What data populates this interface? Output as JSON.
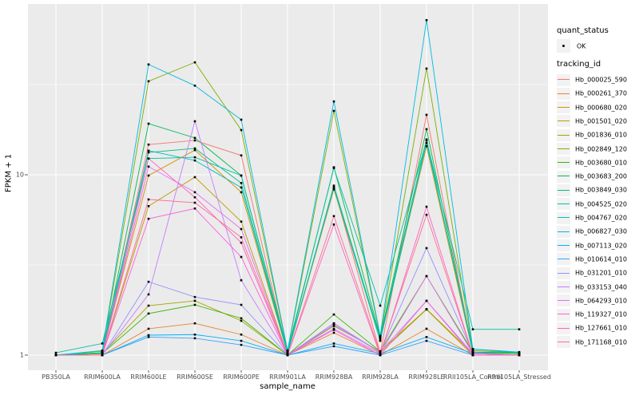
{
  "figure": {
    "panel_bg": "#EBEBEB",
    "grid_color": "#FFFFFF",
    "tick_color": "#333333",
    "tick_label_color": "#4D4D4D",
    "point_color": "#000000"
  },
  "axes": {
    "x_title": "sample_name",
    "y_title": "FPKM + 1",
    "y_ticks": [
      {
        "label": "1",
        "value": 1
      },
      {
        "label": "10",
        "value": 10
      }
    ],
    "y_minor_breaks": [
      3.1623,
      31.623
    ]
  },
  "legend": {
    "quant_title": "quant_status",
    "quant_ok_label": "OK",
    "tracking_title": "tracking_id"
  },
  "chart_data": {
    "type": "line",
    "title": "",
    "xlabel": "sample_name",
    "ylabel": "FPKM + 1",
    "y_scale": "log10",
    "ylim": [
      0.95,
      88
    ],
    "grid": true,
    "legend_position": "right",
    "marker": "black-point",
    "quant_status": "OK",
    "categories": [
      "PB350LA",
      "RRIM600LA",
      "RRIM600LE",
      "RRIM600SE",
      "RRIM600PE",
      "RRIM901LA",
      "RRIM928BA",
      "RRIM928LA",
      "RRIM928LE",
      "RRII105LA_Control",
      "RRII105LA_Stressed"
    ],
    "series": [
      {
        "name": "Hb_000025_590",
        "color": "#F8766D",
        "values": [
          1.0,
          1.02,
          14.7,
          15.5,
          12.8,
          1.02,
          8.5,
          1.03,
          21.5,
          1.03,
          1.0
        ]
      },
      {
        "name": "Hb_000261_370",
        "color": "#EA8331",
        "values": [
          1.0,
          1.0,
          1.4,
          1.5,
          1.3,
          1.0,
          1.33,
          1.0,
          1.4,
          1.0,
          1.0
        ]
      },
      {
        "name": "Hb_000680_020",
        "color": "#D89000",
        "values": [
          1.0,
          1.02,
          9.9,
          13.7,
          8.0,
          1.02,
          8.3,
          1.22,
          14.4,
          1.03,
          1.0
        ]
      },
      {
        "name": "Hb_001501_020",
        "color": "#C09B00",
        "values": [
          1.0,
          1.0,
          6.7,
          9.7,
          5.5,
          1.0,
          1.5,
          1.03,
          1.79,
          1.0,
          1.0
        ]
      },
      {
        "name": "Hb_001836_010",
        "color": "#A3A500",
        "values": [
          1.0,
          1.02,
          1.88,
          2.0,
          1.55,
          1.0,
          1.45,
          1.05,
          1.8,
          1.02,
          1.0
        ]
      },
      {
        "name": "Hb_002849_120",
        "color": "#7CAE00",
        "values": [
          1.0,
          1.05,
          33.0,
          42.0,
          17.7,
          1.05,
          22.6,
          1.26,
          38.8,
          1.06,
          1.03
        ]
      },
      {
        "name": "Hb_003680_010",
        "color": "#39B600",
        "values": [
          1.0,
          1.02,
          1.7,
          1.9,
          1.6,
          1.0,
          1.68,
          1.05,
          2.74,
          1.04,
          1.02
        ]
      },
      {
        "name": "Hb_003683_200",
        "color": "#00BB4E",
        "values": [
          1.0,
          1.03,
          19.2,
          16.0,
          9.9,
          1.03,
          11.0,
          1.26,
          17.9,
          1.04,
          1.03
        ]
      },
      {
        "name": "Hb_003849_030",
        "color": "#00BF7D",
        "values": [
          1.0,
          1.03,
          13.3,
          14.0,
          9.0,
          1.02,
          8.7,
          1.24,
          15.7,
          1.04,
          1.0
        ]
      },
      {
        "name": "Hb_004525_020",
        "color": "#00C1A3",
        "values": [
          1.03,
          1.16,
          12.3,
          12.5,
          9.9,
          1.06,
          10.9,
          1.88,
          15.5,
          1.39,
          1.39
        ]
      },
      {
        "name": "Hb_004767_020",
        "color": "#00BFC4",
        "values": [
          1.0,
          1.03,
          13.6,
          12.0,
          8.5,
          1.03,
          8.5,
          1.2,
          15.0,
          1.08,
          1.03
        ]
      },
      {
        "name": "Hb_006827_030",
        "color": "#00BAE0",
        "values": [
          1.0,
          1.06,
          40.9,
          31.2,
          20.2,
          1.06,
          25.5,
          1.28,
          72.0,
          1.08,
          1.04
        ]
      },
      {
        "name": "Hb_007113_020",
        "color": "#00B0F6",
        "values": [
          1.0,
          1.0,
          1.29,
          1.3,
          1.2,
          1.0,
          1.16,
          1.02,
          1.26,
          1.02,
          1.0
        ]
      },
      {
        "name": "Hb_010614_010",
        "color": "#35A2FF",
        "values": [
          1.0,
          1.0,
          1.26,
          1.24,
          1.14,
          1.0,
          1.12,
          1.0,
          1.2,
          1.0,
          1.0
        ]
      },
      {
        "name": "Hb_031201_010",
        "color": "#9590FF",
        "values": [
          1.0,
          1.0,
          2.55,
          2.1,
          1.9,
          1.0,
          1.47,
          1.04,
          3.92,
          1.03,
          1.0
        ]
      },
      {
        "name": "Hb_033153_040",
        "color": "#C77CFF",
        "values": [
          1.0,
          1.0,
          2.17,
          19.8,
          2.6,
          1.0,
          1.5,
          1.04,
          2.0,
          1.02,
          1.0
        ]
      },
      {
        "name": "Hb_064293_010",
        "color": "#E76BF3",
        "values": [
          1.0,
          1.0,
          11.1,
          8.0,
          5.0,
          1.0,
          1.4,
          1.02,
          2.74,
          1.02,
          1.0
        ]
      },
      {
        "name": "Hb_119327_010",
        "color": "#FA62DB",
        "values": [
          1.0,
          1.0,
          5.7,
          6.5,
          3.5,
          1.0,
          1.38,
          1.0,
          2.0,
          1.0,
          1.0
        ]
      },
      {
        "name": "Hb_127661_010",
        "color": "#FF62BC",
        "values": [
          1.0,
          1.0,
          12.3,
          7.5,
          4.2,
          1.0,
          5.3,
          1.0,
          6.65,
          1.0,
          1.0
        ]
      },
      {
        "name": "Hb_171168_010",
        "color": "#FF6A98",
        "values": [
          1.0,
          1.0,
          7.3,
          7.0,
          4.5,
          1.0,
          5.9,
          1.02,
          6.0,
          1.0,
          1.0
        ]
      }
    ]
  }
}
